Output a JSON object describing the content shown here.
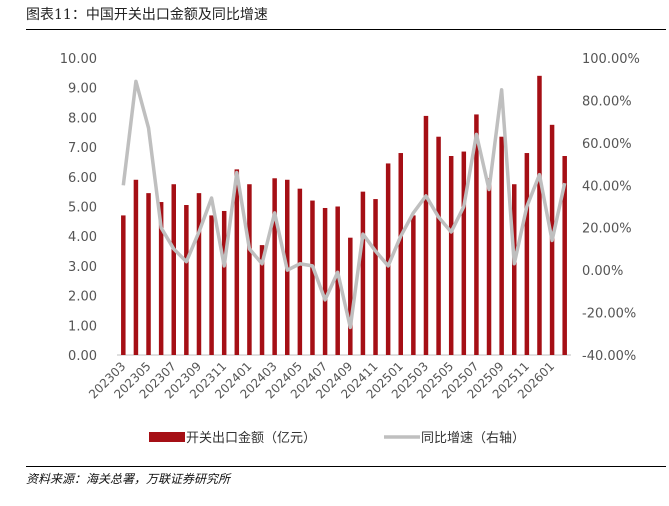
{
  "header": {
    "title": "图表11：中国开关出口金额及同比增速"
  },
  "footer": {
    "source": "资料来源：海关总署，万联证券研究所"
  },
  "colors": {
    "bar": "#A50F15",
    "line": "#BFBFBF"
  },
  "chart_data": {
    "type": "bar",
    "x": [
      "202303",
      "202304",
      "202305",
      "202306",
      "202307",
      "202308",
      "202309",
      "202310",
      "202311",
      "202312",
      "202401",
      "202402",
      "202403",
      "202404",
      "202405",
      "202406",
      "202407",
      "202408",
      "202409",
      "202410",
      "202411",
      "202412",
      "202501",
      "202502",
      "202503",
      "202504",
      "202505",
      "202506",
      "202507",
      "202508",
      "202509",
      "202510",
      "202511",
      "202512",
      "202601",
      "202602"
    ],
    "x_tick_labels": [
      "202303",
      "202305",
      "202307",
      "202309",
      "202311",
      "202401",
      "202403",
      "202405",
      "202407",
      "202409",
      "202411",
      "202501",
      "202503",
      "202505",
      "202507",
      "202509",
      "202511",
      "202601"
    ],
    "series": [
      {
        "name": "开关出口金额（亿元）",
        "type": "bar",
        "axis": "left",
        "values": [
          4.7,
          5.9,
          5.45,
          5.15,
          5.75,
          5.05,
          5.45,
          4.7,
          4.85,
          6.25,
          5.75,
          3.7,
          5.95,
          5.9,
          5.6,
          5.2,
          4.95,
          5.0,
          3.95,
          5.5,
          5.25,
          6.45,
          6.8,
          4.7,
          8.05,
          7.35,
          6.7,
          6.85,
          8.1,
          5.95,
          7.35,
          5.75,
          6.8,
          9.4,
          7.75,
          6.7
        ]
      },
      {
        "name": "同比增速（右轴）",
        "type": "line",
        "axis": "right",
        "values": [
          40,
          89,
          67,
          20,
          10,
          4,
          18,
          34,
          2,
          46,
          10,
          3,
          27,
          0,
          3,
          2,
          -14,
          -1,
          -27,
          17,
          9,
          2,
          16,
          27,
          35,
          25,
          18,
          30,
          64,
          38,
          85,
          3,
          30,
          45,
          14,
          41
        ]
      }
    ],
    "y_left": {
      "min": 0,
      "max": 10,
      "step": 1,
      "tick_labels": [
        "0.00",
        "1.00",
        "2.00",
        "3.00",
        "4.00",
        "5.00",
        "6.00",
        "7.00",
        "8.00",
        "9.00",
        "10.00"
      ]
    },
    "y_right": {
      "min": -40,
      "max": 100,
      "step": 20,
      "tick_labels": [
        "-40.00%",
        "-20.00%",
        "0.00%",
        "20.00%",
        "40.00%",
        "60.00%",
        "80.00%",
        "100.00%"
      ]
    },
    "legend_position": "bottom",
    "grid": false
  }
}
